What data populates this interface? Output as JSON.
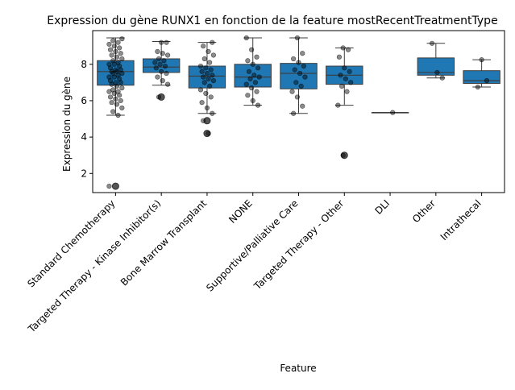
{
  "chart_data": {
    "type": "box",
    "title": "Expression du gène RUNX1 en fonction de la feature mostRecentTreatmentType",
    "xlabel": "Feature",
    "ylabel": "Expression du gène",
    "ylim": [
      0.95,
      9.85
    ],
    "yticks": [
      2,
      4,
      6,
      8
    ],
    "grid": false,
    "box_color": "#1f77b4",
    "categories": [
      "Standard Chemotherapy",
      "Targeted Therapy - Kinase Inhibitor(s)",
      "Bone Marrow Transplant",
      "NONE",
      "Supportive/Palliative Care",
      "Targeted Therapy - Other",
      "DLI",
      "Other",
      "Intrathecal"
    ],
    "boxes": [
      {
        "q1": 6.85,
        "median": 7.6,
        "q3": 8.2,
        "whisker_low": 5.2,
        "whisker_high": 9.45,
        "outliers": [
          1.3
        ]
      },
      {
        "q1": 7.55,
        "median": 7.85,
        "q3": 8.3,
        "whisker_low": 6.85,
        "whisker_high": 9.25,
        "outliers": [
          6.2
        ]
      },
      {
        "q1": 6.7,
        "median": 7.35,
        "q3": 7.9,
        "whisker_low": 5.3,
        "whisker_high": 9.2,
        "outliers": [
          4.9,
          4.2
        ]
      },
      {
        "q1": 6.75,
        "median": 7.3,
        "q3": 8.0,
        "whisker_low": 5.75,
        "whisker_high": 9.45,
        "outliers": []
      },
      {
        "q1": 6.65,
        "median": 7.5,
        "q3": 8.05,
        "whisker_low": 5.3,
        "whisker_high": 9.45,
        "outliers": []
      },
      {
        "q1": 6.9,
        "median": 7.4,
        "q3": 7.9,
        "whisker_low": 5.75,
        "whisker_high": 8.9,
        "outliers": [
          3.0
        ]
      },
      {
        "q1": 5.35,
        "median": 5.35,
        "q3": 5.35,
        "whisker_low": 5.35,
        "whisker_high": 5.35,
        "outliers": []
      },
      {
        "q1": 7.4,
        "median": 7.55,
        "q3": 8.35,
        "whisker_low": 7.25,
        "whisker_high": 9.15,
        "outliers": []
      },
      {
        "q1": 6.95,
        "median": 7.1,
        "q3": 7.65,
        "whisker_low": 6.75,
        "whisker_high": 8.25,
        "outliers": []
      }
    ],
    "points": [
      [
        1.3,
        5.2,
        5.4,
        5.6,
        5.8,
        5.9,
        6.0,
        6.1,
        6.2,
        6.3,
        6.4,
        6.5,
        6.5,
        6.6,
        6.7,
        6.8,
        6.9,
        7.0,
        7.0,
        7.1,
        7.2,
        7.3,
        7.3,
        7.4,
        7.5,
        7.5,
        7.6,
        7.6,
        7.7,
        7.7,
        7.8,
        7.9,
        8.0,
        8.0,
        8.1,
        8.2,
        8.3,
        8.4,
        8.5,
        8.6,
        8.7,
        8.8,
        8.9,
        9.0,
        9.1,
        9.2,
        9.3,
        9.4
      ],
      [
        6.2,
        6.9,
        7.1,
        7.3,
        7.5,
        7.6,
        7.8,
        7.9,
        8.0,
        8.1,
        8.2,
        8.3,
        8.5,
        8.6,
        8.7,
        9.2,
        9.2
      ],
      [
        4.2,
        4.9,
        5.3,
        5.6,
        5.9,
        6.2,
        6.4,
        6.6,
        6.8,
        7.0,
        7.1,
        7.2,
        7.3,
        7.4,
        7.5,
        7.6,
        7.7,
        7.8,
        7.9,
        8.1,
        8.3,
        8.5,
        8.7,
        9.0,
        9.2
      ],
      [
        5.75,
        6.0,
        6.3,
        6.5,
        6.7,
        6.9,
        7.0,
        7.2,
        7.3,
        7.4,
        7.6,
        7.8,
        8.0,
        8.2,
        8.4,
        8.8,
        9.45
      ],
      [
        5.3,
        5.7,
        6.2,
        6.5,
        6.8,
        7.0,
        7.3,
        7.5,
        7.7,
        7.9,
        8.1,
        8.3,
        8.6,
        9.45
      ],
      [
        3.0,
        5.75,
        6.5,
        6.8,
        7.0,
        7.2,
        7.4,
        7.6,
        7.8,
        8.4,
        8.8,
        8.9
      ],
      [
        5.35
      ],
      [
        7.25,
        7.55,
        9.15
      ],
      [
        6.75,
        7.1,
        8.25
      ]
    ]
  }
}
